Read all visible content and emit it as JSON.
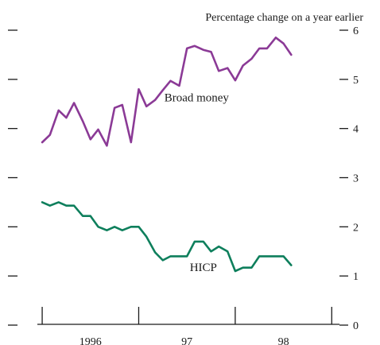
{
  "chart_data": {
    "type": "line",
    "subtitle": "Percentage change on a year earlier",
    "ylim": [
      0,
      6
    ],
    "y_ticks": [
      0,
      1,
      2,
      3,
      4,
      5,
      6
    ],
    "year_ticks": [
      1995.5,
      1996.5,
      1997.5,
      1998.5
    ],
    "year_labels": [
      {
        "label": "1996",
        "x": 1996.0
      },
      {
        "label": "97",
        "x": 1997.0
      },
      {
        "label": "98",
        "x": 1998.0
      }
    ],
    "x_range": [
      1995.45,
      1998.58
    ],
    "grid": false,
    "series": [
      {
        "name": "Broad money",
        "color": "#8b3a96",
        "label_at": {
          "x": 1997.1,
          "y": 4.55
        },
        "points": [
          [
            1995.5,
            3.72
          ],
          [
            1995.58,
            3.87
          ],
          [
            1995.67,
            4.37
          ],
          [
            1995.75,
            4.22
          ],
          [
            1995.83,
            4.52
          ],
          [
            1995.92,
            4.15
          ],
          [
            1996.0,
            3.78
          ],
          [
            1996.08,
            3.98
          ],
          [
            1996.17,
            3.65
          ],
          [
            1996.25,
            4.42
          ],
          [
            1996.33,
            4.48
          ],
          [
            1996.42,
            3.72
          ],
          [
            1996.5,
            4.8
          ],
          [
            1996.58,
            4.45
          ],
          [
            1996.67,
            4.58
          ],
          [
            1996.75,
            4.78
          ],
          [
            1996.83,
            4.97
          ],
          [
            1996.92,
            4.87
          ],
          [
            1997.0,
            5.63
          ],
          [
            1997.08,
            5.68
          ],
          [
            1997.17,
            5.6
          ],
          [
            1997.25,
            5.56
          ],
          [
            1997.33,
            5.17
          ],
          [
            1997.42,
            5.23
          ],
          [
            1997.5,
            4.98
          ],
          [
            1997.58,
            5.28
          ],
          [
            1997.67,
            5.42
          ],
          [
            1997.75,
            5.63
          ],
          [
            1997.83,
            5.63
          ],
          [
            1997.92,
            5.85
          ],
          [
            1998.0,
            5.73
          ],
          [
            1998.08,
            5.5
          ]
        ]
      },
      {
        "name": "HICP",
        "color": "#0e7f5c",
        "label_at": {
          "x": 1997.17,
          "y": 1.1
        },
        "points": [
          [
            1995.5,
            2.5
          ],
          [
            1995.58,
            2.43
          ],
          [
            1995.67,
            2.5
          ],
          [
            1995.75,
            2.43
          ],
          [
            1995.83,
            2.43
          ],
          [
            1995.92,
            2.22
          ],
          [
            1996.0,
            2.22
          ],
          [
            1996.08,
            2.0
          ],
          [
            1996.17,
            1.93
          ],
          [
            1996.25,
            2.0
          ],
          [
            1996.33,
            1.93
          ],
          [
            1996.42,
            2.0
          ],
          [
            1996.5,
            2.0
          ],
          [
            1996.58,
            1.8
          ],
          [
            1996.67,
            1.48
          ],
          [
            1996.75,
            1.32
          ],
          [
            1996.83,
            1.4
          ],
          [
            1996.92,
            1.4
          ],
          [
            1997.0,
            1.4
          ],
          [
            1997.08,
            1.7
          ],
          [
            1997.17,
            1.7
          ],
          [
            1997.25,
            1.5
          ],
          [
            1997.33,
            1.6
          ],
          [
            1997.42,
            1.5
          ],
          [
            1997.5,
            1.1
          ],
          [
            1997.58,
            1.17
          ],
          [
            1997.67,
            1.17
          ],
          [
            1997.75,
            1.4
          ],
          [
            1997.83,
            1.4
          ],
          [
            1997.92,
            1.4
          ],
          [
            1998.0,
            1.4
          ],
          [
            1998.08,
            1.22
          ]
        ]
      }
    ]
  }
}
